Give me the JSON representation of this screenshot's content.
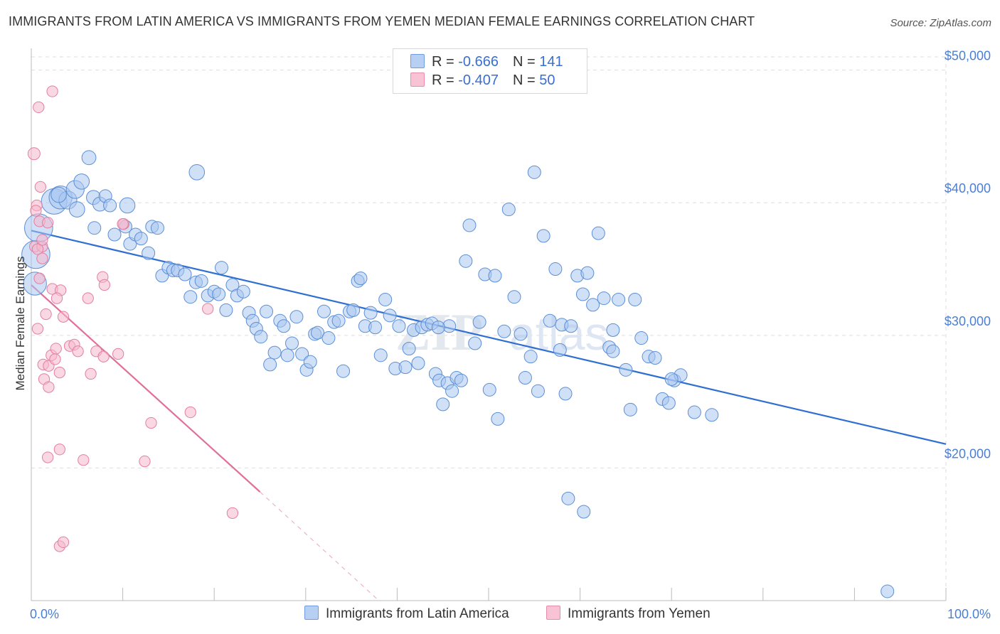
{
  "title": "IMMIGRANTS FROM LATIN AMERICA VS IMMIGRANTS FROM YEMEN MEDIAN FEMALE EARNINGS CORRELATION CHART",
  "source": "Source: ZipAtlas.com",
  "watermark": "ZIPatlas",
  "legend": {
    "rows": [
      {
        "r_label": "R = ",
        "r_value": "-0.666",
        "n_label": "N = ",
        "n_value": "141"
      },
      {
        "r_label": "R = ",
        "r_value": "-0.407",
        "n_label": "N = ",
        "n_value": "50"
      }
    ]
  },
  "colors": {
    "blue_fill": "#a9c6f0",
    "blue_stroke": "#5b8fd6",
    "blue_line": "#2f6fd1",
    "pink_fill": "#f5b8cc",
    "pink_stroke": "#e37ea1",
    "pink_line": "#e0709a",
    "grid": "#dddddd",
    "tick_text": "#4a7fd4"
  },
  "chart_data": {
    "type": "scatter",
    "title": "IMMIGRANTS FROM LATIN AMERICA VS IMMIGRANTS FROM YEMEN MEDIAN FEMALE EARNINGS CORRELATION CHART",
    "xlabel": "",
    "ylabel": "Median Female Earnings",
    "xlim": [
      0,
      100
    ],
    "ylim": [
      10000,
      51000
    ],
    "x_tick_labels": [
      {
        "value": 0,
        "label": "0.0%"
      },
      {
        "value": 100,
        "label": "100.0%"
      }
    ],
    "y_tick_labels": [
      {
        "value": 20000,
        "label": "$20,000"
      },
      {
        "value": 30000,
        "label": "$30,000"
      },
      {
        "value": 40000,
        "label": "$40,000"
      },
      {
        "value": 50000,
        "label": "$50,000"
      }
    ],
    "series": [
      {
        "name": "Immigrants from Latin America",
        "color": "blue",
        "trend": {
          "x0": 0,
          "y0": 37900,
          "x1": 100,
          "y1": 21800
        },
        "points": [
          [
            0.5,
            36100,
            22
          ],
          [
            0.8,
            38100,
            22
          ],
          [
            0.4,
            33900,
            18
          ],
          [
            2.5,
            40100,
            20
          ],
          [
            3.2,
            40400,
            18
          ],
          [
            4.0,
            40200,
            14
          ],
          [
            4.8,
            41000,
            14
          ],
          [
            5.5,
            41600,
            12
          ],
          [
            6.3,
            43400,
            11
          ],
          [
            6.8,
            40400,
            11
          ],
          [
            7.5,
            39900,
            11
          ],
          [
            8.1,
            40500,
            10
          ],
          [
            8.6,
            39800,
            10
          ],
          [
            6.9,
            38100,
            10
          ],
          [
            9.1,
            37600,
            10
          ],
          [
            10.3,
            38200,
            10
          ],
          [
            10.8,
            36900,
            10
          ],
          [
            11.4,
            37600,
            10
          ],
          [
            12.0,
            37300,
            10
          ],
          [
            12.8,
            36200,
            10
          ],
          [
            13.2,
            38200,
            10
          ],
          [
            13.8,
            38100,
            10
          ],
          [
            14.3,
            34500,
            10
          ],
          [
            15.0,
            35100,
            10
          ],
          [
            15.5,
            34900,
            10
          ],
          [
            16.0,
            34900,
            10
          ],
          [
            16.8,
            34600,
            10
          ],
          [
            17.4,
            32900,
            10
          ],
          [
            18.0,
            34000,
            10
          ],
          [
            18.6,
            34100,
            10
          ],
          [
            19.3,
            33000,
            10
          ],
          [
            20.0,
            33300,
            10
          ],
          [
            20.5,
            33100,
            10
          ],
          [
            20.8,
            35100,
            10
          ],
          [
            21.3,
            31900,
            10
          ],
          [
            22.0,
            33800,
            10
          ],
          [
            22.5,
            33000,
            10
          ],
          [
            23.2,
            33300,
            10
          ],
          [
            23.8,
            31700,
            10
          ],
          [
            24.2,
            31100,
            10
          ],
          [
            24.6,
            30500,
            10
          ],
          [
            25.1,
            29900,
            10
          ],
          [
            25.7,
            31800,
            10
          ],
          [
            26.1,
            27800,
            10
          ],
          [
            26.6,
            28700,
            10
          ],
          [
            27.2,
            31100,
            10
          ],
          [
            27.6,
            30700,
            10
          ],
          [
            28.0,
            28500,
            10
          ],
          [
            28.5,
            29400,
            10
          ],
          [
            29.0,
            31400,
            10
          ],
          [
            29.6,
            28600,
            10
          ],
          [
            30.1,
            27400,
            10
          ],
          [
            30.5,
            28000,
            10
          ],
          [
            31.0,
            30100,
            10
          ],
          [
            31.3,
            30200,
            10
          ],
          [
            32.0,
            31800,
            10
          ],
          [
            32.5,
            29800,
            10
          ],
          [
            33.1,
            31000,
            10
          ],
          [
            33.6,
            31100,
            10
          ],
          [
            34.1,
            27300,
            10
          ],
          [
            34.8,
            31800,
            10
          ],
          [
            35.2,
            31900,
            10
          ],
          [
            35.7,
            34100,
            10
          ],
          [
            36.0,
            34300,
            10
          ],
          [
            36.5,
            30700,
            10
          ],
          [
            37.1,
            31700,
            10
          ],
          [
            37.6,
            30600,
            10
          ],
          [
            38.2,
            28500,
            10
          ],
          [
            38.7,
            32700,
            10
          ],
          [
            39.2,
            31500,
            10
          ],
          [
            39.8,
            27500,
            10
          ],
          [
            40.2,
            30700,
            10
          ],
          [
            40.9,
            27600,
            10
          ],
          [
            41.3,
            29000,
            10
          ],
          [
            41.8,
            30400,
            10
          ],
          [
            42.3,
            27900,
            10
          ],
          [
            42.7,
            30600,
            10
          ],
          [
            43.3,
            30800,
            10
          ],
          [
            43.8,
            30900,
            10
          ],
          [
            44.2,
            27100,
            10
          ],
          [
            44.6,
            26600,
            10
          ],
          [
            45.0,
            24800,
            10
          ],
          [
            45.5,
            26400,
            10
          ],
          [
            46.0,
            25800,
            10
          ],
          [
            46.5,
            26800,
            10
          ],
          [
            47.0,
            26600,
            10
          ],
          [
            47.5,
            35600,
            10
          ],
          [
            47.9,
            38300,
            10
          ],
          [
            48.5,
            29400,
            10
          ],
          [
            49.0,
            31000,
            10
          ],
          [
            49.6,
            34600,
            10
          ],
          [
            50.1,
            25900,
            10
          ],
          [
            50.7,
            34500,
            10
          ],
          [
            51.0,
            23700,
            10
          ],
          [
            51.7,
            30300,
            10
          ],
          [
            52.2,
            39500,
            10
          ],
          [
            52.8,
            32900,
            10
          ],
          [
            53.5,
            30100,
            10
          ],
          [
            54.0,
            26800,
            10
          ],
          [
            54.6,
            28400,
            10
          ],
          [
            55.0,
            42300,
            10
          ],
          [
            55.4,
            25800,
            10
          ],
          [
            56.0,
            37500,
            10
          ],
          [
            56.7,
            31100,
            10
          ],
          [
            57.3,
            35000,
            10
          ],
          [
            58.0,
            30800,
            10
          ],
          [
            58.4,
            25600,
            10
          ],
          [
            59.0,
            30700,
            10
          ],
          [
            59.7,
            34500,
            10
          ],
          [
            60.3,
            33100,
            10
          ],
          [
            60.8,
            34700,
            10
          ],
          [
            61.4,
            32300,
            10
          ],
          [
            62.0,
            37700,
            10
          ],
          [
            62.6,
            32800,
            10
          ],
          [
            63.2,
            29100,
            10
          ],
          [
            63.6,
            30400,
            10
          ],
          [
            64.2,
            32700,
            10
          ],
          [
            65.0,
            27400,
            10
          ],
          [
            65.5,
            24400,
            10
          ],
          [
            66.0,
            32700,
            10
          ],
          [
            66.7,
            29800,
            10
          ],
          [
            67.5,
            28400,
            10
          ],
          [
            68.2,
            28300,
            10
          ],
          [
            69.0,
            25200,
            10
          ],
          [
            69.7,
            24900,
            10
          ],
          [
            70.3,
            26600,
            10
          ],
          [
            71.0,
            27000,
            10
          ],
          [
            72.5,
            24200,
            10
          ],
          [
            74.4,
            24000,
            10
          ],
          [
            60.4,
            16700,
            10
          ],
          [
            58.7,
            17700,
            10
          ],
          [
            70.0,
            26700,
            10
          ],
          [
            63.6,
            28800,
            10
          ],
          [
            57.8,
            28900,
            10
          ],
          [
            45.7,
            30700,
            10
          ],
          [
            44.5,
            30600,
            10
          ],
          [
            18.1,
            42300,
            12
          ],
          [
            10.5,
            39800,
            12
          ],
          [
            3.0,
            40600,
            12
          ],
          [
            5.0,
            39500,
            12
          ],
          [
            93.6,
            10700,
            10
          ]
        ]
      },
      {
        "name": "Immigrants from Yemen",
        "color": "pink",
        "trend": {
          "x0": 0,
          "y0": 33800,
          "x1": 25,
          "y1": 18200,
          "dash_x1": 38,
          "dash_y1": 10000
        },
        "points": [
          [
            0.3,
            43700,
            10
          ],
          [
            2.3,
            48400,
            9
          ],
          [
            0.8,
            47200,
            9
          ],
          [
            1.0,
            41200,
            9
          ],
          [
            0.6,
            39800,
            9
          ],
          [
            0.9,
            38600,
            9
          ],
          [
            1.8,
            38500,
            9
          ],
          [
            0.4,
            36700,
            9
          ],
          [
            1.2,
            36700,
            9
          ],
          [
            0.7,
            36500,
            9
          ],
          [
            1.2,
            35800,
            9
          ],
          [
            0.9,
            34300,
            9
          ],
          [
            1.6,
            31600,
            9
          ],
          [
            2.3,
            33500,
            9
          ],
          [
            3.2,
            33400,
            9
          ],
          [
            2.8,
            32800,
            9
          ],
          [
            0.7,
            30500,
            9
          ],
          [
            3.5,
            31400,
            9
          ],
          [
            4.2,
            29200,
            9
          ],
          [
            4.7,
            29300,
            9
          ],
          [
            5.1,
            28800,
            9
          ],
          [
            6.2,
            32800,
            9
          ],
          [
            6.5,
            27100,
            9
          ],
          [
            7.1,
            28800,
            9
          ],
          [
            7.8,
            34400,
            9
          ],
          [
            8.0,
            33800,
            9
          ],
          [
            7.9,
            28400,
            9
          ],
          [
            9.5,
            28600,
            9
          ],
          [
            10.1,
            38400,
            9
          ],
          [
            1.3,
            27800,
            9
          ],
          [
            1.9,
            27700,
            9
          ],
          [
            2.2,
            28500,
            9
          ],
          [
            2.6,
            28200,
            9
          ],
          [
            3.1,
            27200,
            9
          ],
          [
            1.4,
            26700,
            9
          ],
          [
            1.9,
            26100,
            9
          ],
          [
            1.8,
            20800,
            9
          ],
          [
            3.1,
            21400,
            9
          ],
          [
            5.7,
            20600,
            9
          ],
          [
            12.4,
            20500,
            9
          ],
          [
            13.1,
            23400,
            9
          ],
          [
            17.4,
            24200,
            9
          ],
          [
            19.3,
            32000,
            9
          ],
          [
            22.0,
            16600,
            9
          ],
          [
            3.1,
            14100,
            9
          ],
          [
            3.5,
            14400,
            9
          ],
          [
            10.0,
            38400,
            9
          ],
          [
            1.2,
            37200,
            9
          ],
          [
            0.5,
            39400,
            9
          ],
          [
            2.7,
            29000,
            9
          ]
        ]
      }
    ]
  },
  "bottom_legend": {
    "items": [
      {
        "label": "Immigrants from Latin America",
        "color": "blue"
      },
      {
        "label": "Immigrants from Yemen",
        "color": "pink"
      }
    ]
  }
}
